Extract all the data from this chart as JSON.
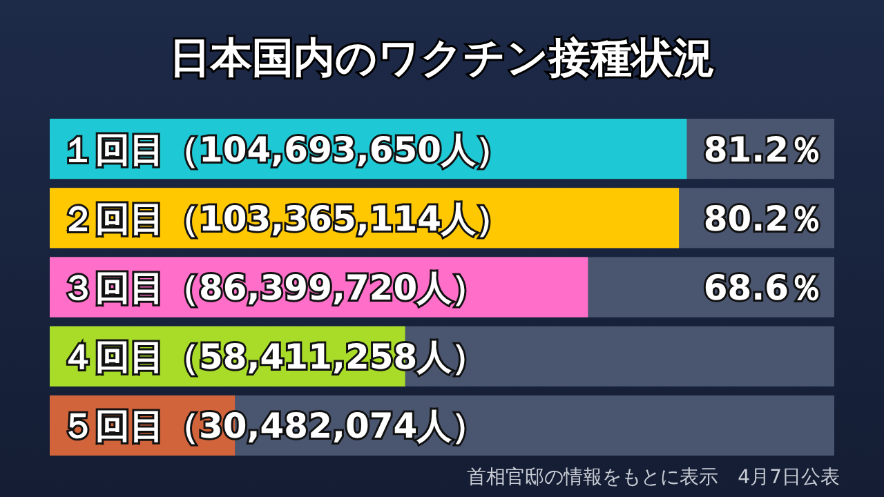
{
  "chart_data": {
    "type": "bar",
    "orientation": "horizontal",
    "title": "日本国内のワクチン接種状況",
    "categories": [
      "１回目（104,693,650人）",
      "２回目（103,365,114人）",
      "３回目（86,399,720人）",
      "４回目（58,411,258人）",
      "５回目（30,482,074人）"
    ],
    "values": [
      81.2,
      80.2,
      68.6,
      45.3,
      23.6
    ],
    "value_labels": [
      "81.2％",
      "80.2％",
      "68.6％",
      null,
      null
    ],
    "colors": [
      "#1ec8d4",
      "#ffc800",
      "#ff6ec8",
      "#a8dc28",
      "#d2643c"
    ],
    "xlim": [
      0,
      100
    ],
    "tick_labels": false,
    "annotations": [
      "首相官邸の情報をもとに表示　4月7日公表"
    ]
  }
}
